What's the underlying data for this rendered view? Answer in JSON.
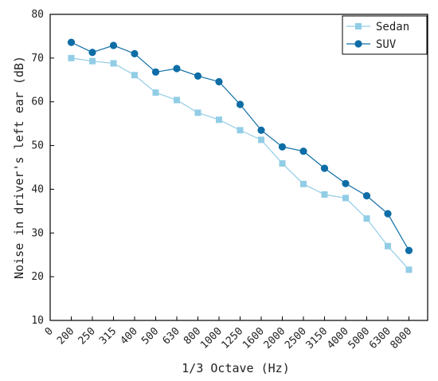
{
  "chart_data": {
    "type": "line",
    "title": "",
    "xlabel": "1/3 Octave (Hz)",
    "ylabel": "Noise in driver's left ear (dB)",
    "ylim": [
      10,
      80
    ],
    "yticks": [
      10,
      20,
      30,
      40,
      50,
      60,
      70,
      80
    ],
    "categories": [
      "0",
      "200",
      "250",
      "315",
      "400",
      "500",
      "630",
      "800",
      "1000",
      "1250",
      "1600",
      "2000",
      "2500",
      "3150",
      "4000",
      "5000",
      "6300",
      "8000"
    ],
    "grid": false,
    "legend_position": "top-right",
    "series": [
      {
        "name": "Sedan",
        "marker": "square",
        "color": "#92cde6",
        "values": [
          null,
          70.0,
          69.3,
          68.8,
          66.1,
          62.1,
          60.4,
          57.5,
          55.9,
          53.5,
          51.3,
          45.9,
          41.2,
          38.8,
          38.0,
          33.3,
          27.0,
          21.6
        ]
      },
      {
        "name": "SUV",
        "marker": "circle",
        "color": "#0e6da6",
        "values": [
          null,
          73.6,
          71.3,
          72.9,
          71.0,
          66.8,
          67.6,
          65.9,
          64.6,
          59.4,
          53.5,
          49.7,
          48.7,
          44.8,
          41.3,
          38.5,
          34.4,
          26.0
        ]
      }
    ]
  }
}
